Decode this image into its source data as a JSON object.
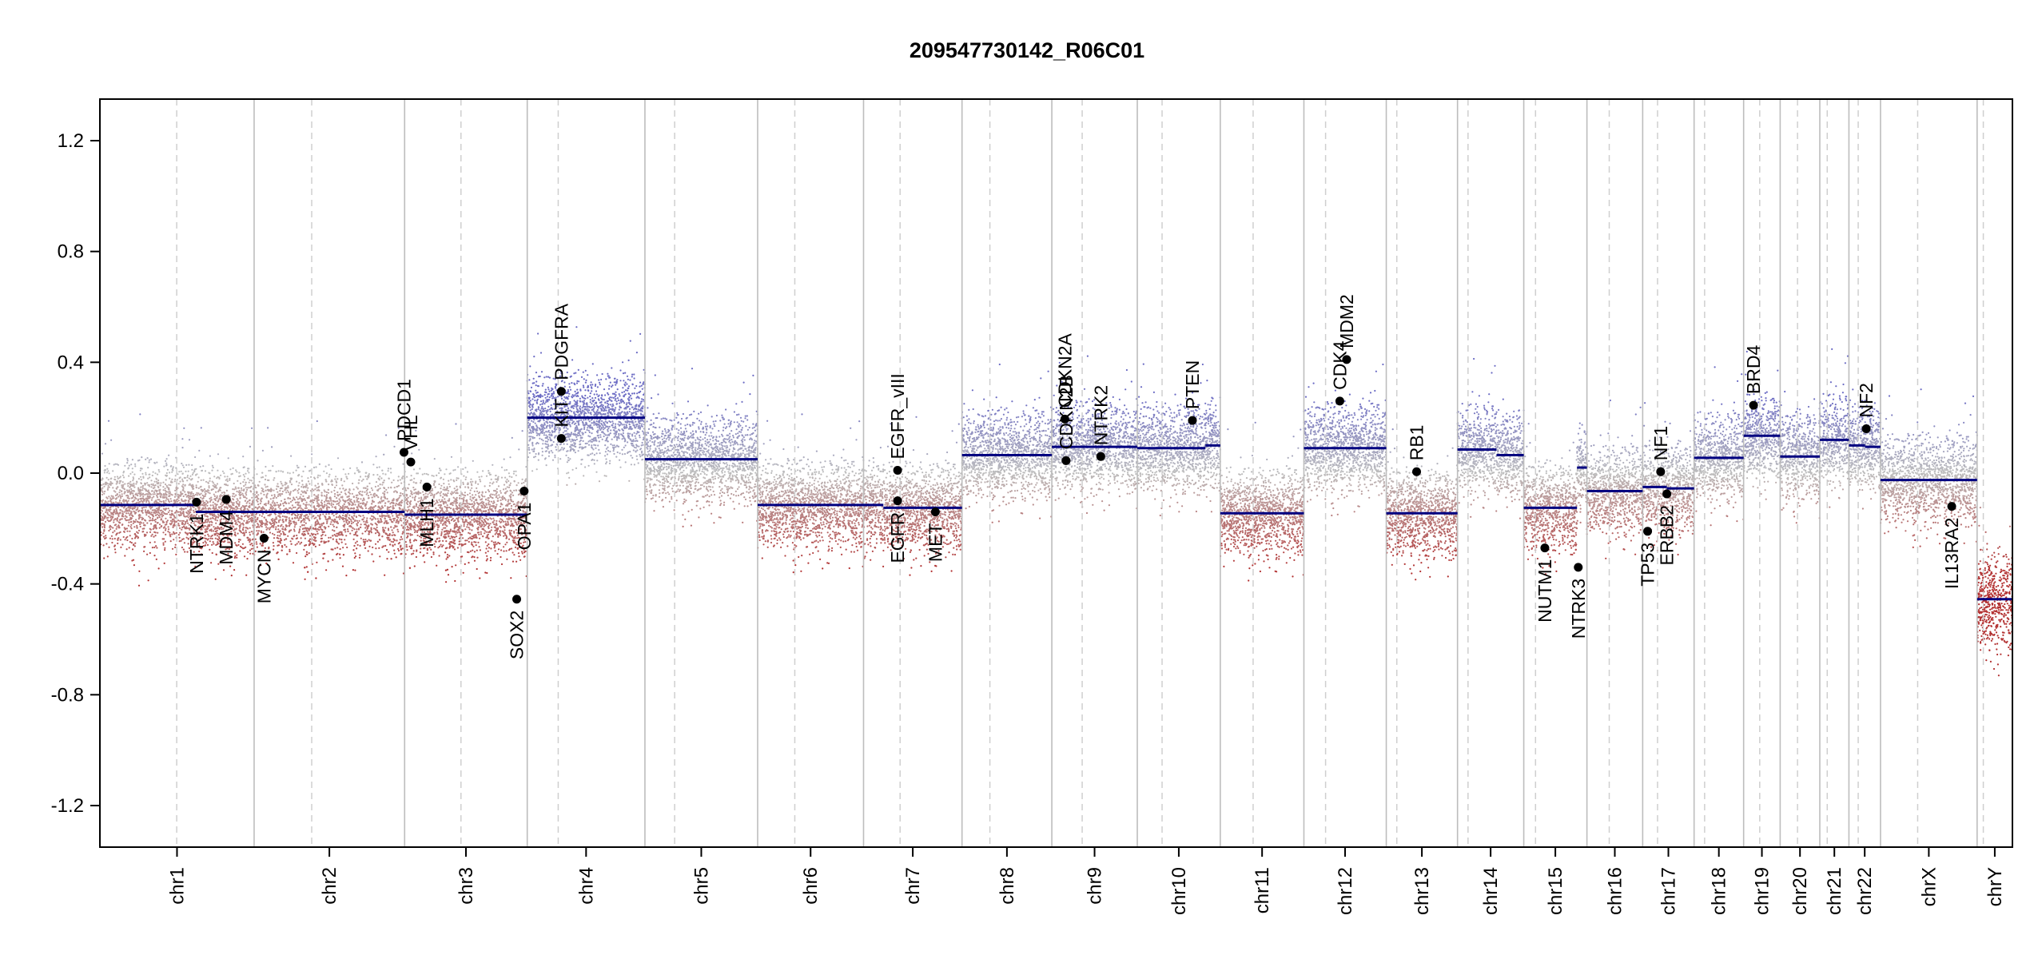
{
  "chart_data": {
    "type": "scatter",
    "title": "209547730142_R06C01",
    "xlabel": "",
    "ylabel": "",
    "ylim": [
      -1.35,
      1.35
    ],
    "y_ticks": [
      -1.2,
      -0.8,
      -0.4,
      0.0,
      0.4,
      0.8,
      1.2
    ],
    "y_tick_labels": [
      "-1.2",
      "-0.8",
      "-0.4",
      "0.0",
      "0.4",
      "0.8",
      "1.2"
    ],
    "grid": false,
    "legend": "none",
    "colors": {
      "segment": "#000080",
      "gain": "#6b6bc4",
      "neutral": "#bdbdbd",
      "loss": "#b23030",
      "gene_point": "#000000",
      "chrom_border": "#bdbdbd",
      "centromere": "#cfcfcf"
    },
    "chromosomes": [
      {
        "name": "chr1",
        "start": 0,
        "end": 249,
        "centromere": 124
      },
      {
        "name": "chr2",
        "start": 249,
        "end": 492,
        "centromere": 93
      },
      {
        "name": "chr3",
        "start": 492,
        "end": 690,
        "centromere": 91
      },
      {
        "name": "chr4",
        "start": 690,
        "end": 880,
        "centromere": 50
      },
      {
        "name": "chr5",
        "start": 880,
        "end": 1062,
        "centromere": 48
      },
      {
        "name": "chr6",
        "start": 1062,
        "end": 1233,
        "centromere": 60
      },
      {
        "name": "chr7",
        "start": 1233,
        "end": 1392,
        "centromere": 59
      },
      {
        "name": "chr8",
        "start": 1392,
        "end": 1537,
        "centromere": 45
      },
      {
        "name": "chr9",
        "start": 1537,
        "end": 1675,
        "centromere": 49
      },
      {
        "name": "chr10",
        "start": 1675,
        "end": 1809,
        "centromere": 40
      },
      {
        "name": "chr11",
        "start": 1809,
        "end": 1944,
        "centromere": 53
      },
      {
        "name": "chr12",
        "start": 1944,
        "end": 2077,
        "centromere": 35
      },
      {
        "name": "chr13",
        "start": 2077,
        "end": 2192,
        "centromere": 17
      },
      {
        "name": "chr14",
        "start": 2192,
        "end": 2299,
        "centromere": 17
      },
      {
        "name": "chr15",
        "start": 2299,
        "end": 2401,
        "centromere": 19
      },
      {
        "name": "chr16",
        "start": 2401,
        "end": 2491,
        "centromere": 36
      },
      {
        "name": "chr17",
        "start": 2491,
        "end": 2574,
        "centromere": 24
      },
      {
        "name": "chr18",
        "start": 2574,
        "end": 2654,
        "centromere": 17
      },
      {
        "name": "chr19",
        "start": 2654,
        "end": 2713,
        "centromere": 26
      },
      {
        "name": "chr20",
        "start": 2713,
        "end": 2777,
        "centromere": 28
      },
      {
        "name": "chr21",
        "start": 2777,
        "end": 2824,
        "centromere": 12
      },
      {
        "name": "chr22",
        "start": 2824,
        "end": 2875,
        "centromere": 15
      },
      {
        "name": "chrX",
        "start": 2875,
        "end": 3031,
        "centromere": 60
      },
      {
        "name": "chrY",
        "start": 3031,
        "end": 3088,
        "centromere": 10
      }
    ],
    "segments": [
      {
        "chrom": "chr1",
        "start": 0,
        "end": 155,
        "value": -0.115
      },
      {
        "chrom": "chr1",
        "start": 155,
        "end": 249,
        "value": -0.14
      },
      {
        "chrom": "chr2",
        "start": 249,
        "end": 492,
        "value": -0.14
      },
      {
        "chrom": "chr3",
        "start": 492,
        "end": 690,
        "value": -0.15
      },
      {
        "chrom": "chr4",
        "start": 690,
        "end": 880,
        "value": 0.2
      },
      {
        "chrom": "chr5",
        "start": 880,
        "end": 1062,
        "value": 0.05
      },
      {
        "chrom": "chr6",
        "start": 1062,
        "end": 1233,
        "value": -0.115
      },
      {
        "chrom": "chr7",
        "start": 1233,
        "end": 1265,
        "value": -0.115
      },
      {
        "chrom": "chr7",
        "start": 1265,
        "end": 1392,
        "value": -0.125
      },
      {
        "chrom": "chr8",
        "start": 1392,
        "end": 1537,
        "value": 0.065
      },
      {
        "chrom": "chr9",
        "start": 1537,
        "end": 1675,
        "value": 0.095
      },
      {
        "chrom": "chr10",
        "start": 1675,
        "end": 1785,
        "value": 0.09
      },
      {
        "chrom": "chr10",
        "start": 1785,
        "end": 1809,
        "value": 0.1
      },
      {
        "chrom": "chr11",
        "start": 1809,
        "end": 1944,
        "value": -0.145
      },
      {
        "chrom": "chr12",
        "start": 1944,
        "end": 2077,
        "value": 0.09
      },
      {
        "chrom": "chr13",
        "start": 2077,
        "end": 2192,
        "value": -0.145
      },
      {
        "chrom": "chr14",
        "start": 2192,
        "end": 2255,
        "value": 0.085
      },
      {
        "chrom": "chr14",
        "start": 2255,
        "end": 2299,
        "value": 0.065
      },
      {
        "chrom": "chr15",
        "start": 2299,
        "end": 2385,
        "value": -0.125
      },
      {
        "chrom": "chr15",
        "start": 2385,
        "end": 2401,
        "value": 0.02
      },
      {
        "chrom": "chr16",
        "start": 2401,
        "end": 2491,
        "value": -0.065
      },
      {
        "chrom": "chr17",
        "start": 2491,
        "end": 2530,
        "value": -0.05
      },
      {
        "chrom": "chr17",
        "start": 2530,
        "end": 2574,
        "value": -0.055
      },
      {
        "chrom": "chr18",
        "start": 2574,
        "end": 2654,
        "value": 0.055
      },
      {
        "chrom": "chr19",
        "start": 2654,
        "end": 2713,
        "value": 0.135
      },
      {
        "chrom": "chr20",
        "start": 2713,
        "end": 2777,
        "value": 0.06
      },
      {
        "chrom": "chr21",
        "start": 2777,
        "end": 2824,
        "value": 0.12
      },
      {
        "chrom": "chr22",
        "start": 2824,
        "end": 2850,
        "value": 0.1
      },
      {
        "chrom": "chr22",
        "start": 2850,
        "end": 2875,
        "value": 0.095
      },
      {
        "chrom": "chrX",
        "start": 2875,
        "end": 3031,
        "value": -0.025
      },
      {
        "chrom": "chrY",
        "start": 3031,
        "end": 3088,
        "value": -0.455
      }
    ],
    "genes": [
      {
        "name": "NTRK1",
        "x": 156,
        "value": -0.105,
        "label_side": "below"
      },
      {
        "name": "MDM4",
        "x": 204,
        "value": -0.095,
        "label_side": "below"
      },
      {
        "name": "MYCN",
        "x": 265,
        "value": -0.235,
        "label_side": "below"
      },
      {
        "name": "PDCD1",
        "x": 491,
        "value": 0.075,
        "label_side": "above"
      },
      {
        "name": "VHL",
        "x": 502,
        "value": 0.04,
        "label_side": "above"
      },
      {
        "name": "MLH1",
        "x": 528,
        "value": -0.05,
        "label_side": "below"
      },
      {
        "name": "SOX2",
        "x": 673,
        "value": -0.455,
        "label_side": "below"
      },
      {
        "name": "OPA1",
        "x": 685,
        "value": -0.065,
        "label_side": "below"
      },
      {
        "name": "KIT",
        "x": 745,
        "value": 0.125,
        "label_side": "above"
      },
      {
        "name": "PDGFRA",
        "x": 745,
        "value": 0.295,
        "label_side": "above"
      },
      {
        "name": "EGFR_vIII",
        "x": 1288,
        "value": 0.01,
        "label_side": "above"
      },
      {
        "name": "EGFR",
        "x": 1288,
        "value": -0.1,
        "label_side": "below"
      },
      {
        "name": "MET",
        "x": 1349,
        "value": -0.14,
        "label_side": "below"
      },
      {
        "name": "CDKN2A",
        "x": 1558,
        "value": 0.195,
        "label_side": "above"
      },
      {
        "name": "CDKN2B",
        "x": 1560,
        "value": 0.045,
        "label_side": "above"
      },
      {
        "name": "NTRK2",
        "x": 1616,
        "value": 0.06,
        "label_side": "above"
      },
      {
        "name": "PTEN",
        "x": 1764,
        "value": 0.19,
        "label_side": "above"
      },
      {
        "name": "CDK4",
        "x": 2002,
        "value": 0.26,
        "label_side": "above"
      },
      {
        "name": "MDM2",
        "x": 2013,
        "value": 0.41,
        "label_side": "above"
      },
      {
        "name": "RB1",
        "x": 2126,
        "value": 0.005,
        "label_side": "above"
      },
      {
        "name": "NUTM1",
        "x": 2333,
        "value": -0.27,
        "label_side": "below"
      },
      {
        "name": "NTRK3",
        "x": 2387,
        "value": -0.34,
        "label_side": "below"
      },
      {
        "name": "TP53",
        "x": 2499,
        "value": -0.21,
        "label_side": "below"
      },
      {
        "name": "NF1",
        "x": 2520,
        "value": 0.005,
        "label_side": "above"
      },
      {
        "name": "ERBB2",
        "x": 2530,
        "value": -0.075,
        "label_side": "below"
      },
      {
        "name": "BRD4",
        "x": 2670,
        "value": 0.245,
        "label_side": "above"
      },
      {
        "name": "NF2",
        "x": 2852,
        "value": 0.16,
        "label_side": "above"
      },
      {
        "name": "IL13RA2",
        "x": 2990,
        "value": -0.12,
        "label_side": "below"
      }
    ]
  }
}
